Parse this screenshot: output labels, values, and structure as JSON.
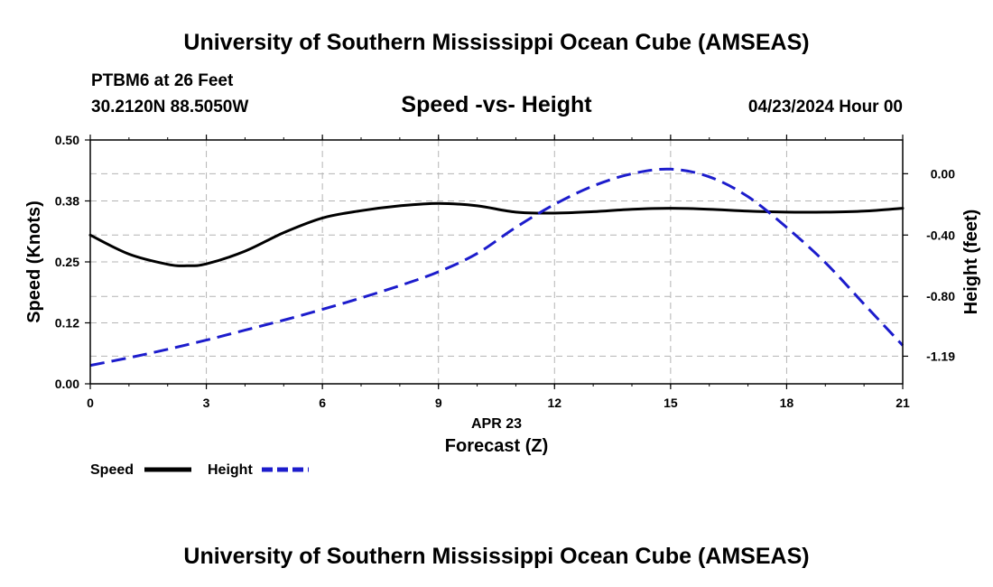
{
  "header": {
    "title": "University of Southern Mississippi Ocean Cube (AMSEAS)",
    "station": "PTBM6 at 26 Feet",
    "coords": "30.2120N  88.5050W",
    "subtitle": "Speed -vs- Height",
    "datetime": "04/23/2024 Hour 00"
  },
  "footer": {
    "title": "University of Southern Mississippi Ocean Cube (AMSEAS)"
  },
  "chart_data": {
    "type": "line",
    "title": "Speed -vs- Height",
    "xlabel": "Forecast (Z)",
    "xdate": "APR 23",
    "ylabel": "Speed (Knots)",
    "y2label": "Height (feet)",
    "xlim": [
      0,
      21
    ],
    "ylim": [
      0,
      0.5
    ],
    "y2lim": [
      -1.37,
      0.22
    ],
    "x_ticks": [
      0,
      3,
      6,
      9,
      12,
      15,
      18,
      21
    ],
    "x_tick_labels": [
      "0",
      "3",
      "6",
      "9",
      "12",
      "15",
      "18",
      "21"
    ],
    "y_ticks": [
      0,
      0.125,
      0.25,
      0.375,
      0.5
    ],
    "y_tick_labels": [
      "0.00",
      "0.12",
      "0.25",
      "0.38",
      "0.50"
    ],
    "y2_ticks": [
      0.0,
      -0.4,
      -0.8,
      -1.19
    ],
    "y2_tick_labels": [
      "0.00",
      "-0.40",
      "-0.80",
      "-1.19"
    ],
    "grid": true,
    "legend_position": "bottom-left",
    "series": [
      {
        "name": "Speed",
        "axis": "left",
        "color": "#000000",
        "style": "solid",
        "x": [
          0,
          1,
          2,
          2.5,
          3,
          4,
          5,
          6,
          7,
          8,
          9,
          10,
          11,
          12,
          13,
          14,
          15,
          16,
          17,
          18,
          19,
          20,
          21
        ],
        "values": [
          0.305,
          0.266,
          0.245,
          0.242,
          0.246,
          0.272,
          0.31,
          0.34,
          0.355,
          0.365,
          0.37,
          0.365,
          0.352,
          0.35,
          0.353,
          0.358,
          0.36,
          0.358,
          0.354,
          0.352,
          0.352,
          0.354,
          0.36
        ]
      },
      {
        "name": "Height",
        "axis": "right",
        "color": "#1c1ccc",
        "style": "dashed",
        "x": [
          0,
          1,
          2,
          3,
          4,
          5,
          6,
          7,
          8,
          9,
          10,
          11,
          12,
          13,
          14,
          15,
          16,
          17,
          18,
          19,
          20,
          21
        ],
        "values": [
          -1.25,
          -1.2,
          -1.145,
          -1.085,
          -1.02,
          -0.955,
          -0.885,
          -0.81,
          -0.73,
          -0.64,
          -0.52,
          -0.35,
          -0.2,
          -0.08,
          0.0,
          0.03,
          -0.02,
          -0.15,
          -0.35,
          -0.58,
          -0.85,
          -1.12
        ]
      }
    ]
  }
}
